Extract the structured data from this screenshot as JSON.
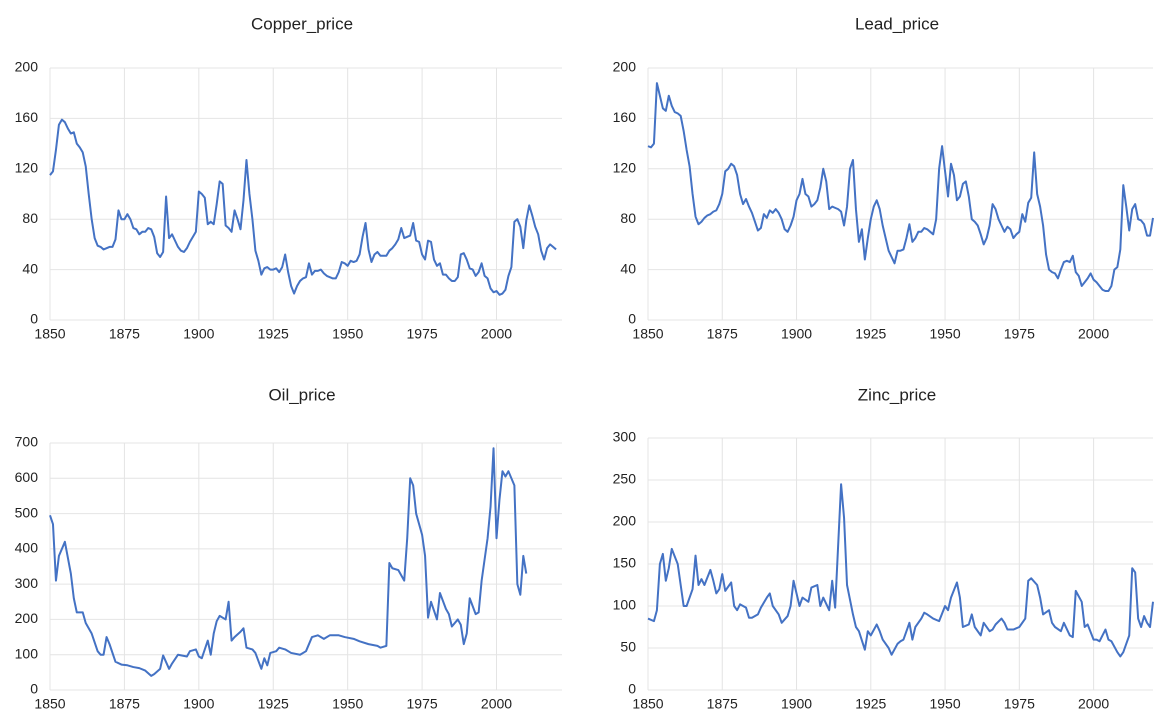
{
  "chart_data": [
    {
      "type": "line",
      "title": "Copper_price",
      "color": "#4472c4",
      "grid": true,
      "xlim": [
        1850,
        2022
      ],
      "xticks": [
        1850,
        1875,
        1900,
        1925,
        1950,
        1975,
        2000
      ],
      "ylim": [
        0,
        200
      ],
      "yticks": [
        0,
        40,
        80,
        120,
        160,
        200
      ],
      "x": [
        1850,
        1851,
        1852,
        1853,
        1854,
        1855,
        1856,
        1857,
        1858,
        1859,
        1860,
        1861,
        1862,
        1863,
        1864,
        1865,
        1866,
        1867,
        1868,
        1869,
        1870,
        1871,
        1872,
        1873,
        1874,
        1875,
        1876,
        1877,
        1878,
        1879,
        1880,
        1881,
        1882,
        1883,
        1884,
        1885,
        1886,
        1887,
        1888,
        1889,
        1890,
        1891,
        1892,
        1893,
        1894,
        1895,
        1896,
        1897,
        1898,
        1899,
        1900,
        1901,
        1902,
        1903,
        1904,
        1905,
        1906,
        1907,
        1908,
        1909,
        1910,
        1911,
        1912,
        1913,
        1914,
        1915,
        1916,
        1917,
        1918,
        1919,
        1920,
        1921,
        1922,
        1923,
        1924,
        1925,
        1926,
        1927,
        1928,
        1929,
        1930,
        1931,
        1932,
        1933,
        1934,
        1935,
        1936,
        1937,
        1938,
        1939,
        1940,
        1941,
        1942,
        1943,
        1944,
        1945,
        1946,
        1947,
        1948,
        1949,
        1950,
        1951,
        1952,
        1953,
        1954,
        1955,
        1956,
        1957,
        1958,
        1959,
        1960,
        1961,
        1962,
        1963,
        1964,
        1965,
        1966,
        1967,
        1968,
        1969,
        1970,
        1971,
        1972,
        1973,
        1974,
        1975,
        1976,
        1977,
        1978,
        1979,
        1980,
        1981,
        1982,
        1983,
        1984,
        1985,
        1986,
        1987,
        1988,
        1989,
        1990,
        1991,
        1992,
        1993,
        1994,
        1995,
        1996,
        1997,
        1998,
        1999,
        2000,
        2001,
        2002,
        2003,
        2004,
        2005,
        2006,
        2007,
        2008,
        2009,
        2010,
        2011,
        2012,
        2013,
        2014,
        2015,
        2016,
        2017,
        2018,
        2019,
        2020
      ],
      "values": [
        115,
        118,
        135,
        155,
        159,
        157,
        152,
        148,
        149,
        140,
        137,
        133,
        122,
        100,
        80,
        65,
        59,
        58,
        56,
        57,
        58,
        58,
        64,
        87,
        80,
        80,
        84,
        80,
        73,
        72,
        68,
        70,
        70,
        73,
        72,
        66,
        53,
        50,
        54,
        98,
        65,
        68,
        63,
        58,
        55,
        54,
        57,
        62,
        66,
        70,
        102,
        100,
        97,
        76,
        78,
        76,
        92,
        110,
        108,
        75,
        73,
        70,
        87,
        80,
        72,
        95,
        127,
        100,
        80,
        55,
        47,
        36,
        41,
        42,
        40,
        40,
        41,
        38,
        42,
        52,
        38,
        27,
        21,
        27,
        31,
        33,
        34,
        45,
        36,
        39,
        39,
        40,
        37,
        35,
        34,
        33,
        33,
        38,
        46,
        45,
        43,
        47,
        46,
        47,
        52,
        66,
        77,
        56,
        46,
        52,
        54,
        51,
        51,
        51,
        55,
        57,
        60,
        64,
        73,
        65,
        66,
        67,
        77,
        63,
        62,
        52,
        48,
        63,
        62,
        48,
        43,
        45,
        36,
        36,
        33,
        31,
        31,
        34,
        52,
        53,
        48,
        41,
        40,
        35,
        38,
        45,
        35,
        33,
        25,
        22,
        23,
        20,
        21,
        24,
        35,
        42,
        78,
        80,
        74,
        57,
        79,
        91,
        83,
        74,
        68,
        55,
        48,
        57,
        60,
        58,
        56
      ]
    },
    {
      "type": "line",
      "title": "Lead_price",
      "color": "#4472c4",
      "grid": true,
      "xlim": [
        1850,
        2020
      ],
      "xticks": [
        1850,
        1875,
        1900,
        1925,
        1950,
        1975,
        2000
      ],
      "ylim": [
        0,
        200
      ],
      "yticks": [
        0,
        40,
        80,
        120,
        160,
        200
      ],
      "x": [
        1850,
        1851,
        1852,
        1853,
        1854,
        1855,
        1856,
        1857,
        1858,
        1859,
        1860,
        1861,
        1862,
        1863,
        1864,
        1865,
        1866,
        1867,
        1868,
        1869,
        1870,
        1871,
        1872,
        1873,
        1874,
        1875,
        1876,
        1877,
        1878,
        1879,
        1880,
        1881,
        1882,
        1883,
        1884,
        1885,
        1886,
        1887,
        1888,
        1889,
        1890,
        1891,
        1892,
        1893,
        1894,
        1895,
        1896,
        1897,
        1898,
        1899,
        1900,
        1901,
        1902,
        1903,
        1904,
        1905,
        1906,
        1907,
        1908,
        1909,
        1910,
        1911,
        1912,
        1913,
        1914,
        1915,
        1916,
        1917,
        1918,
        1919,
        1920,
        1921,
        1922,
        1923,
        1924,
        1925,
        1926,
        1927,
        1928,
        1929,
        1930,
        1931,
        1932,
        1933,
        1934,
        1935,
        1936,
        1937,
        1938,
        1939,
        1940,
        1941,
        1942,
        1943,
        1944,
        1945,
        1946,
        1947,
        1948,
        1949,
        1950,
        1951,
        1952,
        1953,
        1954,
        1955,
        1956,
        1957,
        1958,
        1959,
        1960,
        1961,
        1962,
        1963,
        1964,
        1965,
        1966,
        1967,
        1968,
        1969,
        1970,
        1971,
        1972,
        1973,
        1974,
        1975,
        1976,
        1977,
        1978,
        1979,
        1980,
        1981,
        1982,
        1983,
        1984,
        1985,
        1986,
        1987,
        1988,
        1989,
        1990,
        1991,
        1992,
        1993,
        1994,
        1995,
        1996,
        1997,
        1998,
        1999,
        2000,
        2001,
        2002,
        2003,
        2004,
        2005,
        2006,
        2007,
        2008,
        2009,
        2010,
        2011,
        2012,
        2013,
        2014,
        2015,
        2016,
        2017,
        2018,
        2019,
        2020
      ],
      "values": [
        138,
        137,
        140,
        188,
        178,
        168,
        166,
        178,
        170,
        165,
        164,
        162,
        150,
        135,
        122,
        100,
        82,
        76,
        78,
        81,
        83,
        84,
        86,
        87,
        92,
        100,
        118,
        120,
        124,
        122,
        115,
        100,
        92,
        96,
        90,
        85,
        78,
        71,
        73,
        84,
        81,
        87,
        85,
        88,
        85,
        80,
        72,
        70,
        75,
        82,
        95,
        100,
        112,
        100,
        98,
        90,
        92,
        95,
        105,
        120,
        110,
        88,
        90,
        89,
        88,
        86,
        75,
        90,
        120,
        127,
        88,
        62,
        72,
        48,
        65,
        80,
        90,
        95,
        88,
        75,
        65,
        55,
        50,
        45,
        55,
        55,
        56,
        65,
        76,
        62,
        65,
        70,
        70,
        73,
        72,
        70,
        68,
        80,
        120,
        138,
        118,
        98,
        124,
        115,
        95,
        98,
        108,
        110,
        98,
        80,
        78,
        75,
        68,
        60,
        65,
        75,
        92,
        88,
        80,
        75,
        70,
        74,
        72,
        65,
        68,
        70,
        84,
        78,
        93,
        97,
        133,
        100,
        90,
        75,
        52,
        40,
        38,
        37,
        33,
        40,
        46,
        47,
        46,
        51,
        38,
        35,
        27,
        30,
        33,
        37,
        32,
        30,
        27,
        24,
        23,
        23,
        27,
        40,
        42,
        56,
        107,
        90,
        71,
        88,
        92,
        80,
        79,
        76,
        67,
        67,
        81
      ]
    },
    {
      "type": "line",
      "title": "Oil_price",
      "color": "#4472c4",
      "grid": true,
      "xlim": [
        1850,
        2022
      ],
      "xticks": [
        1850,
        1875,
        1900,
        1925,
        1950,
        1975,
        2000
      ],
      "ylim": [
        0,
        700
      ],
      "yticks": [
        0,
        100,
        200,
        300,
        400,
        500,
        600,
        700
      ],
      "x": [
        1850,
        1851,
        1852,
        1853,
        1854,
        1855,
        1857,
        1858,
        1859,
        1861,
        1862,
        1863,
        1864,
        1866,
        1867,
        1868,
        1869,
        1870,
        1872,
        1874,
        1876,
        1878,
        1880,
        1882,
        1884,
        1885,
        1887,
        1888,
        1890,
        1891,
        1893,
        1896,
        1897,
        1899,
        1900,
        1901,
        1903,
        1904,
        1905,
        1906,
        1907,
        1909,
        1910,
        1911,
        1912,
        1914,
        1915,
        1916,
        1918,
        1919,
        1921,
        1922,
        1923,
        1924,
        1926,
        1927,
        1929,
        1931,
        1934,
        1936,
        1938,
        1940,
        1942,
        1944,
        1947,
        1949,
        1952,
        1954,
        1957,
        1960,
        1961,
        1963,
        1964,
        1965,
        1967,
        1969,
        1970,
        1971,
        1972,
        1973,
        1975,
        1976,
        1977,
        1978,
        1980,
        1981,
        1983,
        1984,
        1985,
        1987,
        1988,
        1989,
        1990,
        1991,
        1993,
        1994,
        1995,
        1997,
        1998,
        1999,
        2000,
        2001,
        2002,
        2003,
        2004,
        2006,
        2007,
        2008,
        2009,
        2010
      ],
      "values": [
        495,
        470,
        310,
        380,
        400,
        420,
        330,
        260,
        220,
        220,
        190,
        175,
        160,
        110,
        100,
        100,
        150,
        130,
        80,
        72,
        70,
        65,
        62,
        55,
        40,
        45,
        60,
        98,
        60,
        75,
        100,
        95,
        110,
        115,
        95,
        90,
        140,
        100,
        160,
        195,
        210,
        200,
        250,
        140,
        150,
        165,
        175,
        120,
        115,
        105,
        60,
        90,
        70,
        105,
        110,
        120,
        115,
        105,
        100,
        110,
        150,
        155,
        145,
        155,
        155,
        150,
        145,
        138,
        130,
        125,
        120,
        125,
        360,
        345,
        340,
        310,
        430,
        600,
        580,
        500,
        440,
        380,
        205,
        250,
        200,
        275,
        230,
        215,
        180,
        200,
        185,
        130,
        160,
        260,
        215,
        220,
        310,
        430,
        520,
        685,
        430,
        540,
        620,
        605,
        620,
        580,
        300,
        270,
        380,
        330
      ]
    },
    {
      "type": "line",
      "title": "Zinc_price",
      "color": "#4472c4",
      "grid": true,
      "xlim": [
        1850,
        2020
      ],
      "xticks": [
        1850,
        1875,
        1900,
        1925,
        1950,
        1975,
        2000
      ],
      "ylim": [
        0,
        300
      ],
      "yticks": [
        0,
        50,
        100,
        150,
        200,
        250,
        300
      ],
      "x": [
        1850,
        1852,
        1853,
        1854,
        1855,
        1856,
        1857,
        1858,
        1860,
        1861,
        1862,
        1863,
        1865,
        1866,
        1867,
        1868,
        1869,
        1871,
        1872,
        1873,
        1874,
        1875,
        1876,
        1878,
        1879,
        1880,
        1881,
        1883,
        1884,
        1885,
        1887,
        1888,
        1890,
        1891,
        1892,
        1894,
        1895,
        1897,
        1898,
        1899,
        1901,
        1902,
        1904,
        1905,
        1907,
        1908,
        1909,
        1911,
        1912,
        1913,
        1915,
        1916,
        1917,
        1919,
        1920,
        1921,
        1923,
        1924,
        1925,
        1927,
        1928,
        1929,
        1931,
        1932,
        1934,
        1935,
        1936,
        1938,
        1939,
        1940,
        1942,
        1943,
        1944,
        1946,
        1948,
        1950,
        1951,
        1952,
        1954,
        1955,
        1956,
        1958,
        1959,
        1960,
        1962,
        1963,
        1965,
        1966,
        1967,
        1969,
        1970,
        1971,
        1973,
        1975,
        1977,
        1978,
        1979,
        1981,
        1982,
        1983,
        1985,
        1986,
        1987,
        1989,
        1990,
        1992,
        1993,
        1994,
        1996,
        1997,
        1998,
        2000,
        2001,
        2002,
        2004,
        2005,
        2006,
        2008,
        2009,
        2010,
        2012,
        2013,
        2014,
        2015,
        2016,
        2017,
        2018,
        2019,
        2020
      ],
      "values": [
        85,
        82,
        95,
        150,
        162,
        130,
        145,
        168,
        150,
        125,
        100,
        100,
        120,
        160,
        125,
        132,
        125,
        143,
        130,
        115,
        120,
        138,
        118,
        128,
        100,
        95,
        102,
        98,
        86,
        86,
        90,
        98,
        110,
        115,
        100,
        90,
        80,
        88,
        100,
        130,
        100,
        110,
        105,
        122,
        125,
        100,
        110,
        95,
        130,
        98,
        245,
        205,
        125,
        90,
        75,
        70,
        48,
        70,
        65,
        78,
        70,
        60,
        50,
        42,
        55,
        58,
        60,
        80,
        60,
        75,
        85,
        92,
        90,
        85,
        82,
        100,
        95,
        110,
        128,
        110,
        75,
        78,
        90,
        75,
        65,
        80,
        70,
        72,
        78,
        85,
        80,
        72,
        72,
        75,
        85,
        130,
        133,
        125,
        110,
        90,
        95,
        80,
        75,
        70,
        80,
        65,
        63,
        118,
        105,
        75,
        78,
        60,
        60,
        58,
        72,
        60,
        58,
        45,
        40,
        45,
        65,
        145,
        140,
        85,
        75,
        88,
        80,
        75,
        105
      ]
    }
  ]
}
